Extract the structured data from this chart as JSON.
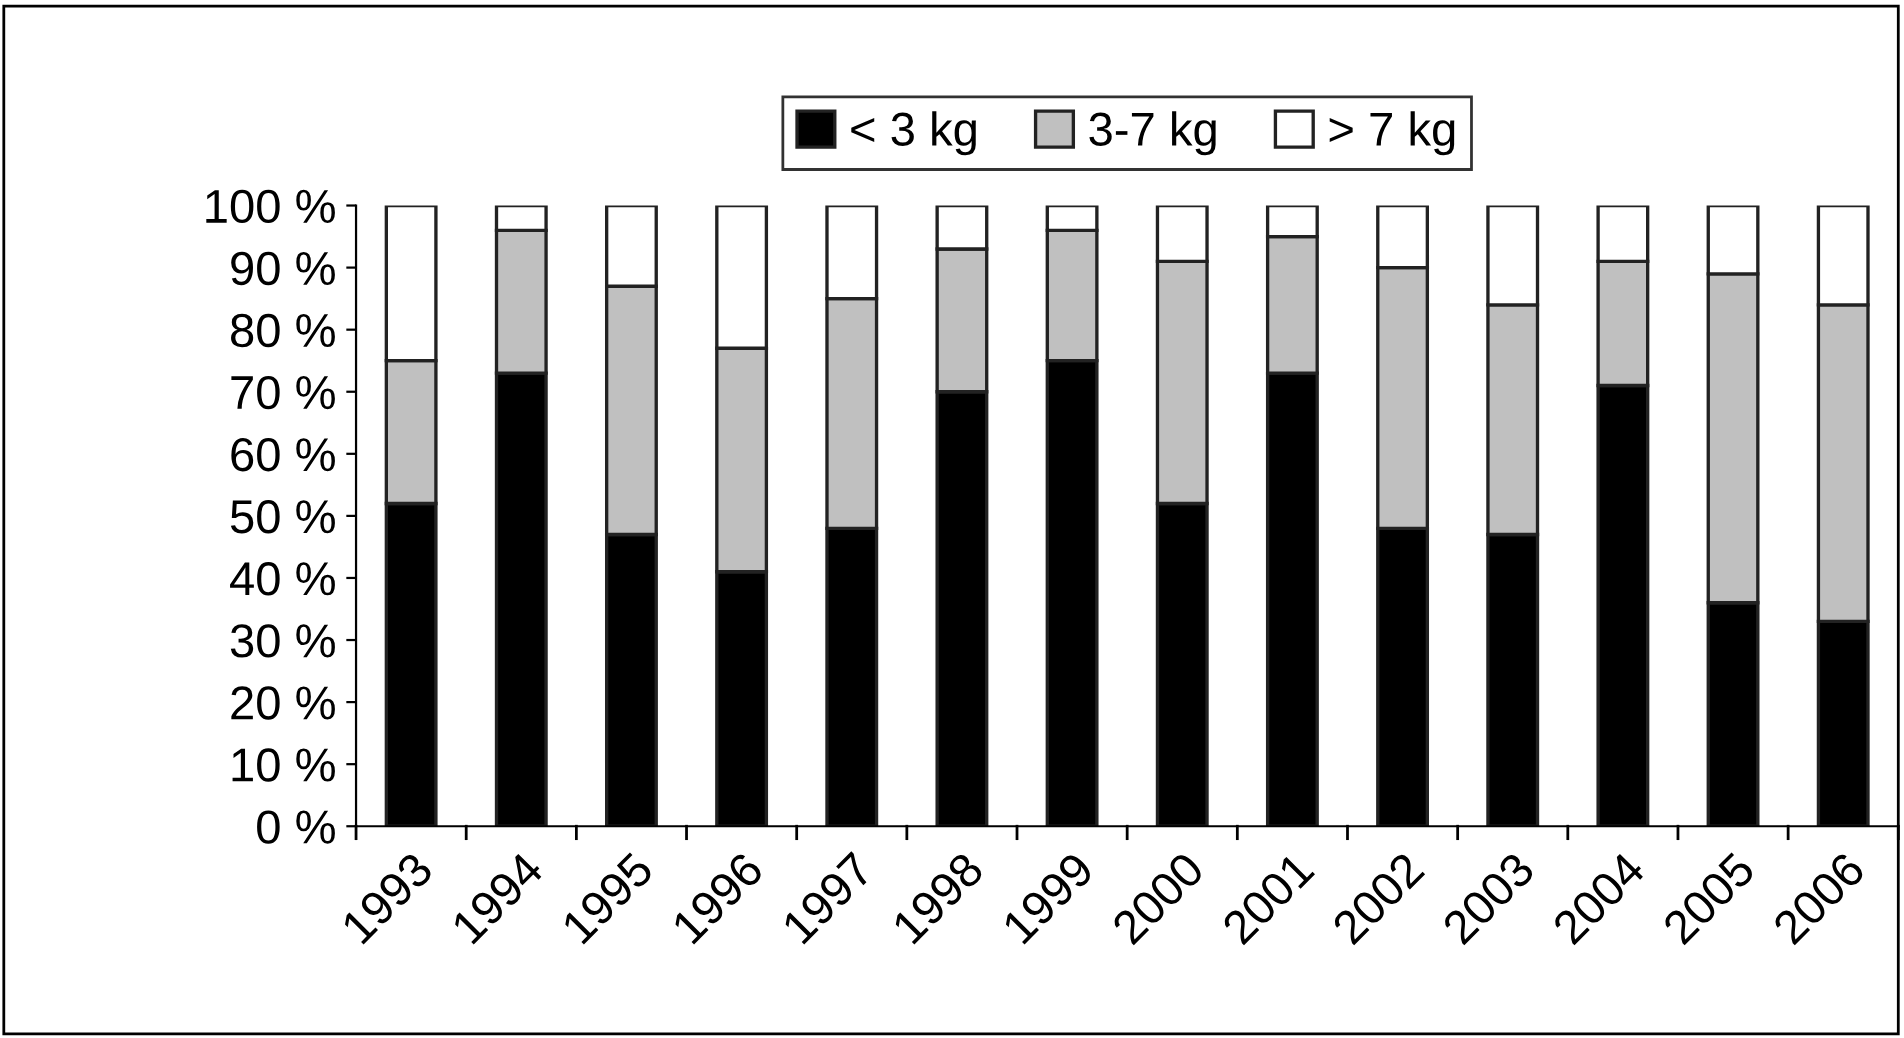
{
  "chart_data": {
    "type": "bar",
    "stacked": true,
    "categories": [
      "1993",
      "1994",
      "1995",
      "1996",
      "1997",
      "1998",
      "1999",
      "2000",
      "2001",
      "2002",
      "2003",
      "2004",
      "2005",
      "2006"
    ],
    "series": [
      {
        "name": "< 3 kg",
        "color": "#000000",
        "values": [
          52,
          73,
          47,
          41,
          48,
          70,
          75,
          52,
          73,
          48,
          47,
          71,
          36,
          33
        ]
      },
      {
        "name": "3-7 kg",
        "color": "#c0c0c0",
        "values": [
          23,
          23,
          40,
          36,
          37,
          23,
          21,
          39,
          22,
          42,
          37,
          20,
          53,
          51
        ]
      },
      {
        "name": "> 7 kg",
        "color": "#ffffff",
        "values": [
          25,
          4,
          13,
          23,
          15,
          7,
          4,
          9,
          5,
          10,
          16,
          9,
          11,
          16
        ]
      }
    ],
    "ylim": [
      0,
      100
    ],
    "yticks": [
      {
        "value": 0,
        "label": "0 %"
      },
      {
        "value": 10,
        "label": "10 %"
      },
      {
        "value": 20,
        "label": "20 %"
      },
      {
        "value": 30,
        "label": "30 %"
      },
      {
        "value": 40,
        "label": "40 %"
      },
      {
        "value": 50,
        "label": "50 %"
      },
      {
        "value": 60,
        "label": "60 %"
      },
      {
        "value": 70,
        "label": "70 %"
      },
      {
        "value": 80,
        "label": "80 %"
      },
      {
        "value": 90,
        "label": "90 %"
      },
      {
        "value": 100,
        "label": "100 %"
      }
    ],
    "grid": false,
    "legend": "top"
  }
}
